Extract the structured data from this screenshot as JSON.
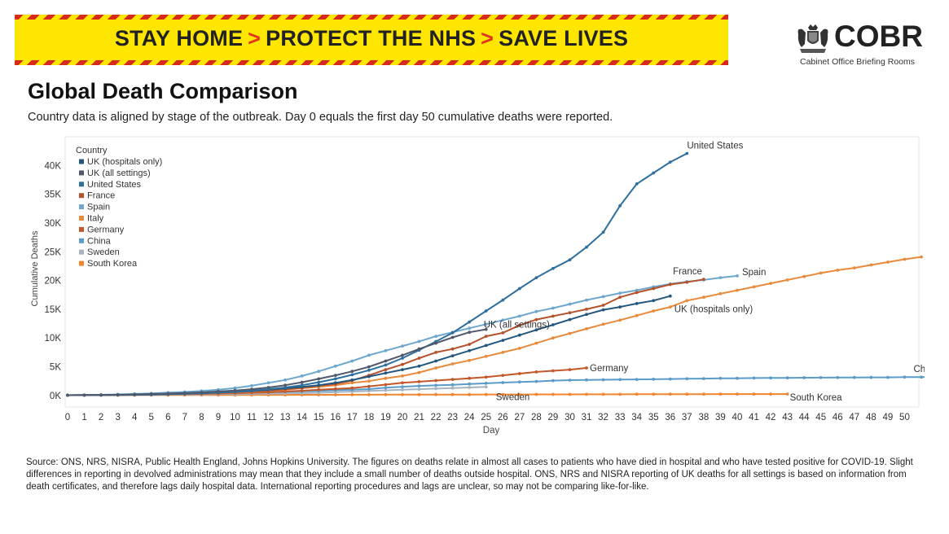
{
  "banner": {
    "part1": "STAY HOME",
    "part2": "PROTECT THE NHS",
    "part3": "SAVE LIVES",
    "separator": ">"
  },
  "logo": {
    "name": "COBR",
    "subtitle": "Cabinet Office Briefing Rooms",
    "icon": "royal-crest-icon"
  },
  "title": "Global Death Comparison",
  "subtitle": "Country data is aligned by stage of the outbreak. Day 0 equals the first day 50 cumulative deaths were reported.",
  "source": "Source: ONS, NRS, NISRA, Public Health England, Johns Hopkins University. The figures on deaths relate in almost all cases to patients who have died in hospital and who have tested positive for COVID-19. Slight differences in reporting in devolved administrations may mean that they include a small number of deaths outside hospital. ONS, NRS and NISRA reporting of UK deaths for all settings is based on information from death certificates, and therefore lags daily hospital data. International reporting procedures and lags are unclear, so may not be comparing like-for-like.",
  "chart_data": {
    "type": "line",
    "title": "Global Death Comparison",
    "xlabel": "Day",
    "ylabel": "Cumulative Deaths",
    "xlim": [
      0,
      51
    ],
    "ylim": [
      -2000,
      45000
    ],
    "yticks": [
      0,
      5000,
      10000,
      15000,
      20000,
      25000,
      30000,
      35000,
      40000
    ],
    "ytick_labels": [
      "0K",
      "5K",
      "10K",
      "15K",
      "20K",
      "25K",
      "30K",
      "35K",
      "40K"
    ],
    "xticks": [
      0,
      1,
      2,
      3,
      4,
      5,
      6,
      7,
      8,
      9,
      10,
      11,
      12,
      13,
      14,
      15,
      16,
      17,
      18,
      19,
      20,
      21,
      22,
      23,
      24,
      25,
      26,
      27,
      28,
      29,
      30,
      31,
      32,
      33,
      34,
      35,
      36,
      37,
      38,
      39,
      40,
      41,
      42,
      43,
      44,
      45,
      46,
      47,
      48,
      49,
      50
    ],
    "grid": "horizontal dotted",
    "legend_title": "Country",
    "legend_position": "top-left",
    "series": [
      {
        "name": "UK (hospitals only)",
        "end_label": "UK (hospitals only)",
        "color": "#23577d",
        "values": [
          50,
          60,
          80,
          110,
          150,
          200,
          270,
          340,
          420,
          520,
          640,
          800,
          1000,
          1250,
          1500,
          1800,
          2200,
          2700,
          3300,
          3900,
          4500,
          5100,
          6000,
          6900,
          7800,
          8700,
          9600,
          10500,
          11400,
          12300,
          13200,
          14100,
          14900,
          15400,
          16000,
          16500,
          17300
        ]
      },
      {
        "name": "UK (all settings)",
        "end_label": "UK (all settings)",
        "color": "#50596b",
        "values": [
          50,
          70,
          100,
          140,
          190,
          260,
          340,
          430,
          550,
          700,
          880,
          1100,
          1400,
          1800,
          2300,
          2900,
          3500,
          4200,
          5000,
          6000,
          7000,
          8100,
          9100,
          10100,
          11000,
          11500
        ]
      },
      {
        "name": "United States",
        "end_label": "United States",
        "color": "#2e6f9e",
        "values": [
          50,
          60,
          80,
          100,
          130,
          170,
          230,
          300,
          390,
          500,
          650,
          850,
          1100,
          1400,
          1800,
          2300,
          2900,
          3600,
          4400,
          5300,
          6500,
          7900,
          9400,
          10900,
          12800,
          14700,
          16600,
          18600,
          20500,
          22100,
          23600,
          25800,
          28400,
          33000,
          36800,
          38700,
          40600,
          42100
        ]
      },
      {
        "name": "France",
        "end_label": "France",
        "color": "#b5522b",
        "values": [
          50,
          60,
          80,
          100,
          130,
          170,
          220,
          280,
          350,
          450,
          560,
          700,
          860,
          1100,
          1330,
          1700,
          2000,
          2600,
          3500,
          4500,
          5400,
          6500,
          7500,
          8100,
          8900,
          10300,
          10900,
          12200,
          13200,
          13800,
          14400,
          15000,
          15700,
          17100,
          17900,
          18600,
          19300,
          19700,
          20200
        ]
      },
      {
        "name": "Spain",
        "end_label": "Spain",
        "color": "#6ea7cd",
        "values": [
          50,
          90,
          130,
          190,
          280,
          370,
          500,
          620,
          800,
          1000,
          1300,
          1700,
          2200,
          2700,
          3400,
          4200,
          5100,
          6000,
          7000,
          7800,
          8600,
          9400,
          10300,
          11000,
          11700,
          12400,
          13100,
          13800,
          14600,
          15200,
          15900,
          16600,
          17200,
          17800,
          18300,
          18900,
          19400,
          19800,
          20100,
          20500,
          20800
        ]
      },
      {
        "name": "Italy",
        "end_label": "Italy",
        "color": "#e88a3c",
        "values": [
          50,
          55,
          60,
          80,
          110,
          150,
          200,
          250,
          320,
          400,
          500,
          630,
          830,
          1000,
          1270,
          1500,
          1800,
          2200,
          2500,
          3000,
          3400,
          4000,
          4800,
          5500,
          6100,
          6800,
          7500,
          8200,
          9100,
          10000,
          10800,
          11600,
          12400,
          13100,
          13900,
          14700,
          15400,
          16500,
          17100,
          17700,
          18300,
          18900,
          19500,
          20100,
          20700,
          21300,
          21800,
          22200,
          22700,
          23200,
          23700,
          24100
        ]
      },
      {
        "name": "Germany",
        "end_label": "Germany",
        "color": "#c4572a",
        "values": [
          50,
          60,
          70,
          90,
          120,
          150,
          190,
          230,
          280,
          340,
          400,
          480,
          560,
          700,
          830,
          1000,
          1150,
          1300,
          1600,
          1900,
          2200,
          2400,
          2600,
          2800,
          3000,
          3200,
          3500,
          3800,
          4100,
          4300,
          4500,
          4800
        ]
      },
      {
        "name": "China",
        "end_label": "China",
        "color": "#5b9bc8",
        "values": [
          50,
          60,
          80,
          110,
          130,
          170,
          210,
          260,
          300,
          360,
          430,
          490,
          560,
          640,
          720,
          810,
          910,
          1020,
          1110,
          1360,
          1520,
          1670,
          1770,
          1870,
          2010,
          2120,
          2240,
          2350,
          2450,
          2590,
          2670,
          2710,
          2740,
          2770,
          2800,
          2830,
          2870,
          2910,
          2940,
          2980,
          3000,
          3040,
          3060,
          3070,
          3100,
          3110,
          3120,
          3140,
          3150,
          3160,
          3190,
          3200,
          3230
        ]
      },
      {
        "name": "Sweden",
        "end_label": "Sweden",
        "color": "#a6b4c2",
        "values": [
          50,
          60,
          70,
          80,
          90,
          110,
          140,
          160,
          180,
          220,
          240,
          280,
          330,
          370,
          400,
          480,
          590,
          690,
          800,
          900,
          1000,
          1100,
          1200,
          1300,
          1400,
          1500
        ]
      },
      {
        "name": "South Korea",
        "end_label": "South Korea",
        "color": "#f0852d",
        "values": [
          50,
          55,
          60,
          65,
          70,
          75,
          80,
          85,
          90,
          95,
          100,
          105,
          110,
          115,
          120,
          125,
          130,
          135,
          140,
          145,
          150,
          155,
          160,
          165,
          170,
          175,
          180,
          185,
          190,
          195,
          200,
          205,
          210,
          215,
          220,
          225,
          230,
          235,
          240,
          245,
          248,
          250,
          252,
          255
        ]
      }
    ]
  }
}
